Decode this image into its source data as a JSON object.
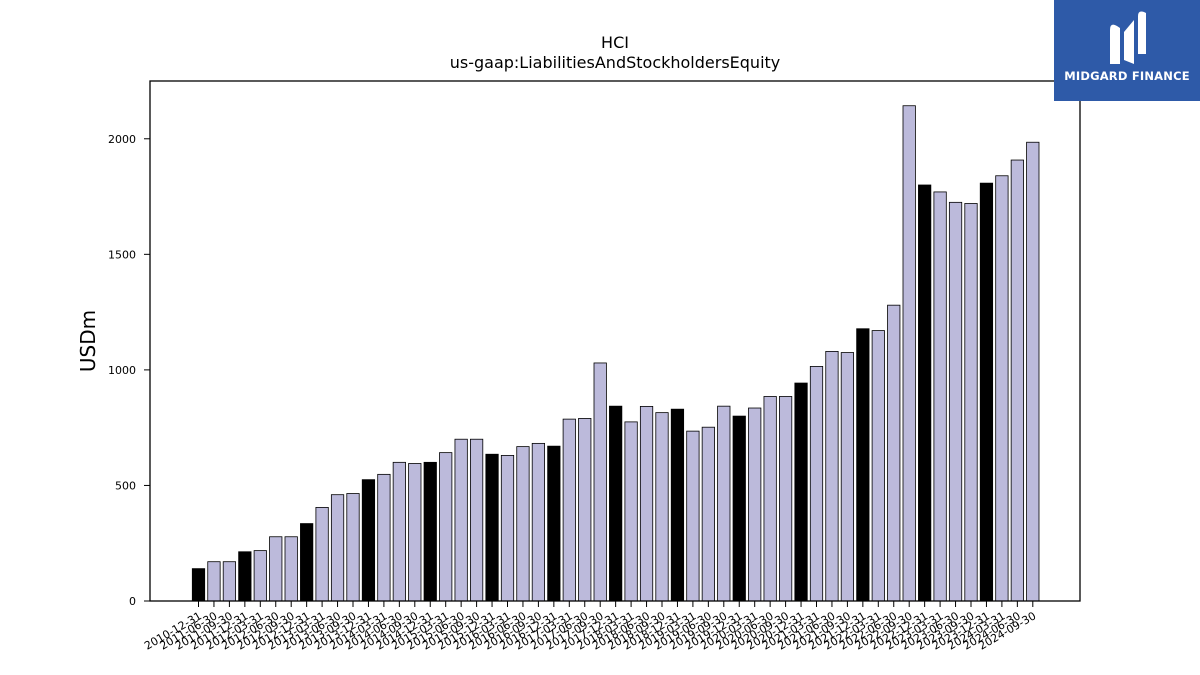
{
  "chart_data": {
    "type": "bar",
    "title": "HCI",
    "subtitle": "us-gaap:LiabilitiesAndStockholdersEquity",
    "xlabel": "",
    "ylabel": "USDm",
    "ylim": [
      0,
      2250
    ],
    "yticks": [
      0,
      500,
      1000,
      1500,
      2000
    ],
    "grid": false,
    "colors": {
      "annual": "#000000",
      "quarterly": "#bcbadb",
      "edge": "#000000"
    },
    "categories": [
      "2010-12-31",
      "2011-06-30",
      "2011-09-30",
      "2011-12-31",
      "2012-03-31",
      "2012-06-30",
      "2012-09-30",
      "2012-12-31",
      "2013-03-31",
      "2013-06-30",
      "2013-09-30",
      "2013-12-31",
      "2014-03-31",
      "2014-06-30",
      "2014-09-30",
      "2014-12-31",
      "2015-03-31",
      "2015-06-30",
      "2015-09-30",
      "2015-12-31",
      "2016-03-31",
      "2016-06-30",
      "2016-09-30",
      "2016-12-31",
      "2017-03-31",
      "2017-06-30",
      "2017-09-30",
      "2017-12-31",
      "2018-03-31",
      "2018-06-30",
      "2018-09-30",
      "2018-12-31",
      "2019-03-31",
      "2019-06-30",
      "2019-09-30",
      "2019-12-31",
      "2020-03-31",
      "2020-06-30",
      "2020-09-30",
      "2020-12-31",
      "2021-03-31",
      "2021-06-30",
      "2021-09-30",
      "2021-12-31",
      "2022-03-31",
      "2022-06-30",
      "2022-09-30",
      "2022-12-31",
      "2023-03-31",
      "2023-06-30",
      "2023-09-30",
      "2023-12-31",
      "2024-03-31",
      "2024-06-30",
      "2024-09-30"
    ],
    "values": [
      140,
      170,
      170,
      213,
      218,
      278,
      278,
      335,
      405,
      460,
      465,
      525,
      548,
      600,
      595,
      600,
      642,
      700,
      700,
      635,
      630,
      668,
      682,
      670,
      787,
      790,
      1030,
      843,
      775,
      842,
      815,
      830,
      735,
      752,
      843,
      800,
      835,
      885,
      885,
      943,
      1015,
      1080,
      1075,
      1178,
      1170,
      1280,
      2143,
      1800,
      1770,
      1725,
      1720,
      1808,
      1840,
      1908,
      1985
    ],
    "is_annual": [
      true,
      false,
      false,
      true,
      false,
      false,
      false,
      true,
      false,
      false,
      false,
      true,
      false,
      false,
      false,
      true,
      false,
      false,
      false,
      true,
      false,
      false,
      false,
      true,
      false,
      false,
      false,
      true,
      false,
      false,
      false,
      true,
      false,
      false,
      false,
      true,
      false,
      false,
      false,
      true,
      false,
      false,
      false,
      true,
      false,
      false,
      false,
      true,
      false,
      false,
      false,
      true,
      false,
      false,
      false
    ]
  },
  "logo": {
    "text": "MIDGARD FINANCE",
    "background": "#2e5aa8"
  }
}
